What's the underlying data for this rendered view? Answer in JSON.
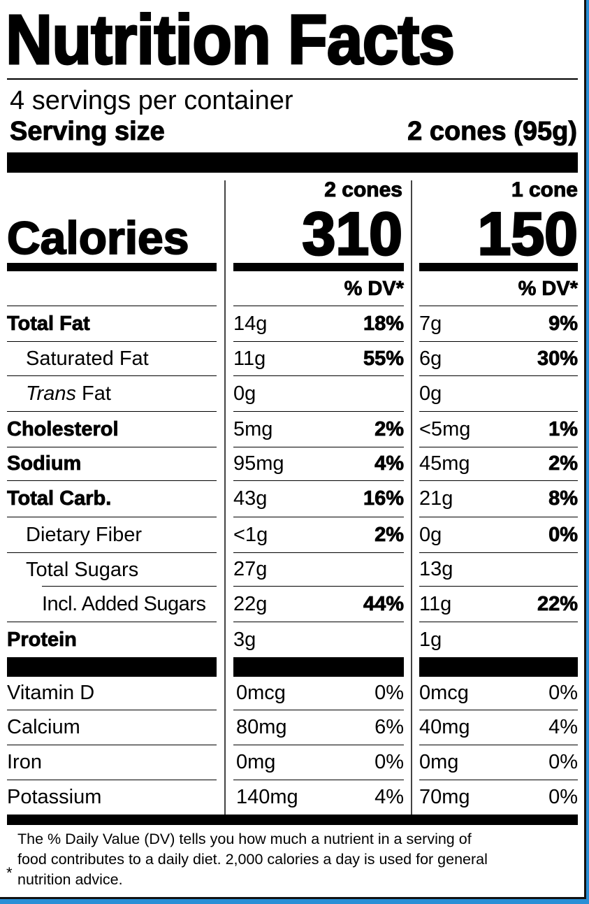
{
  "title": "Nutrition Facts",
  "servings_per_container": "4 servings per container",
  "serving_size_label": "Serving size",
  "serving_size_value": "2 cones (95g)",
  "calories_label": "Calories",
  "columns": [
    {
      "header": "2 cones",
      "calories": "310",
      "dv_header": "% DV*"
    },
    {
      "header": "1 cone",
      "calories": "150",
      "dv_header": "% DV*"
    }
  ],
  "nutrients": [
    {
      "label": "Total Fat",
      "c1": "14g",
      "p1": "18%",
      "c2": "7g",
      "p2": "9%"
    },
    {
      "label": "Saturated Fat",
      "c1": "11g",
      "p1": "55%",
      "c2": "6g",
      "p2": "30%"
    },
    {
      "label_italic": "Trans",
      "label": " Fat",
      "c1": "0g",
      "p1": "",
      "c2": "0g",
      "p2": ""
    },
    {
      "label": "Cholesterol",
      "c1": "5mg",
      "p1": "2%",
      "c2": "<5mg",
      "p2": "1%"
    },
    {
      "label": "Sodium",
      "c1": "95mg",
      "p1": "4%",
      "c2": "45mg",
      "p2": "2%"
    },
    {
      "label": "Total Carb.",
      "c1": "43g",
      "p1": "16%",
      "c2": "21g",
      "p2": "8%"
    },
    {
      "label": "Dietary Fiber",
      "c1": "<1g",
      "p1": "2%",
      "c2": "0g",
      "p2": "0%"
    },
    {
      "label": "Total Sugars",
      "c1": "27g",
      "p1": "",
      "c2": "13g",
      "p2": ""
    },
    {
      "label": "Incl. Added Sugars",
      "c1": "22g",
      "p1": "44%",
      "c2": "11g",
      "p2": "22%"
    },
    {
      "label": "Protein",
      "c1": "3g",
      "p1": "",
      "c2": "1g",
      "p2": ""
    }
  ],
  "vitamins": [
    {
      "label": "Vitamin D",
      "c1": "0mcg",
      "p1": "0%",
      "c2": "0mcg",
      "p2": "0%"
    },
    {
      "label": "Calcium",
      "c1": "80mg",
      "p1": "6%",
      "c2": "40mg",
      "p2": "4%"
    },
    {
      "label": "Iron",
      "c1": "0mg",
      "p1": "0%",
      "c2": "0mg",
      "p2": "0%"
    },
    {
      "label": "Potassium",
      "c1": "140mg",
      "p1": "4%",
      "c2": "70mg",
      "p2": "0%"
    }
  ],
  "footnote": {
    "asterisk": "*",
    "lines": [
      "The % Daily Value (DV) tells you how much a nutrient in a serving of",
      "food contributes to a daily diet. 2,000 calories a day is used for general",
      "nutrition advice."
    ]
  }
}
